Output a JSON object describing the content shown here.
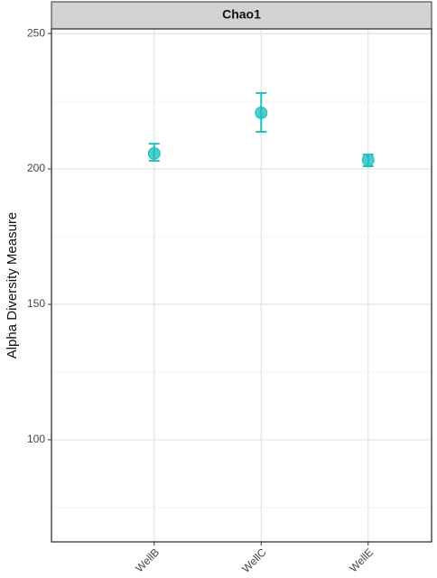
{
  "chart_data": {
    "type": "pointrange",
    "title": "Chao1",
    "y_label": "Alpha Diversity Measure",
    "categories": [
      "WellB",
      "WellC",
      "WellE"
    ],
    "values": [
      205.7,
      220.7,
      203.3
    ],
    "lower": [
      203,
      213.7,
      201
    ],
    "upper": [
      209.3,
      228,
      205.3
    ],
    "color": "#1fbfbf",
    "ylim": [
      62.3,
      251.7
    ],
    "yticks": [
      100,
      150,
      200,
      250
    ],
    "minor_yticks": [
      75,
      125,
      175,
      225
    ],
    "grid": true
  }
}
